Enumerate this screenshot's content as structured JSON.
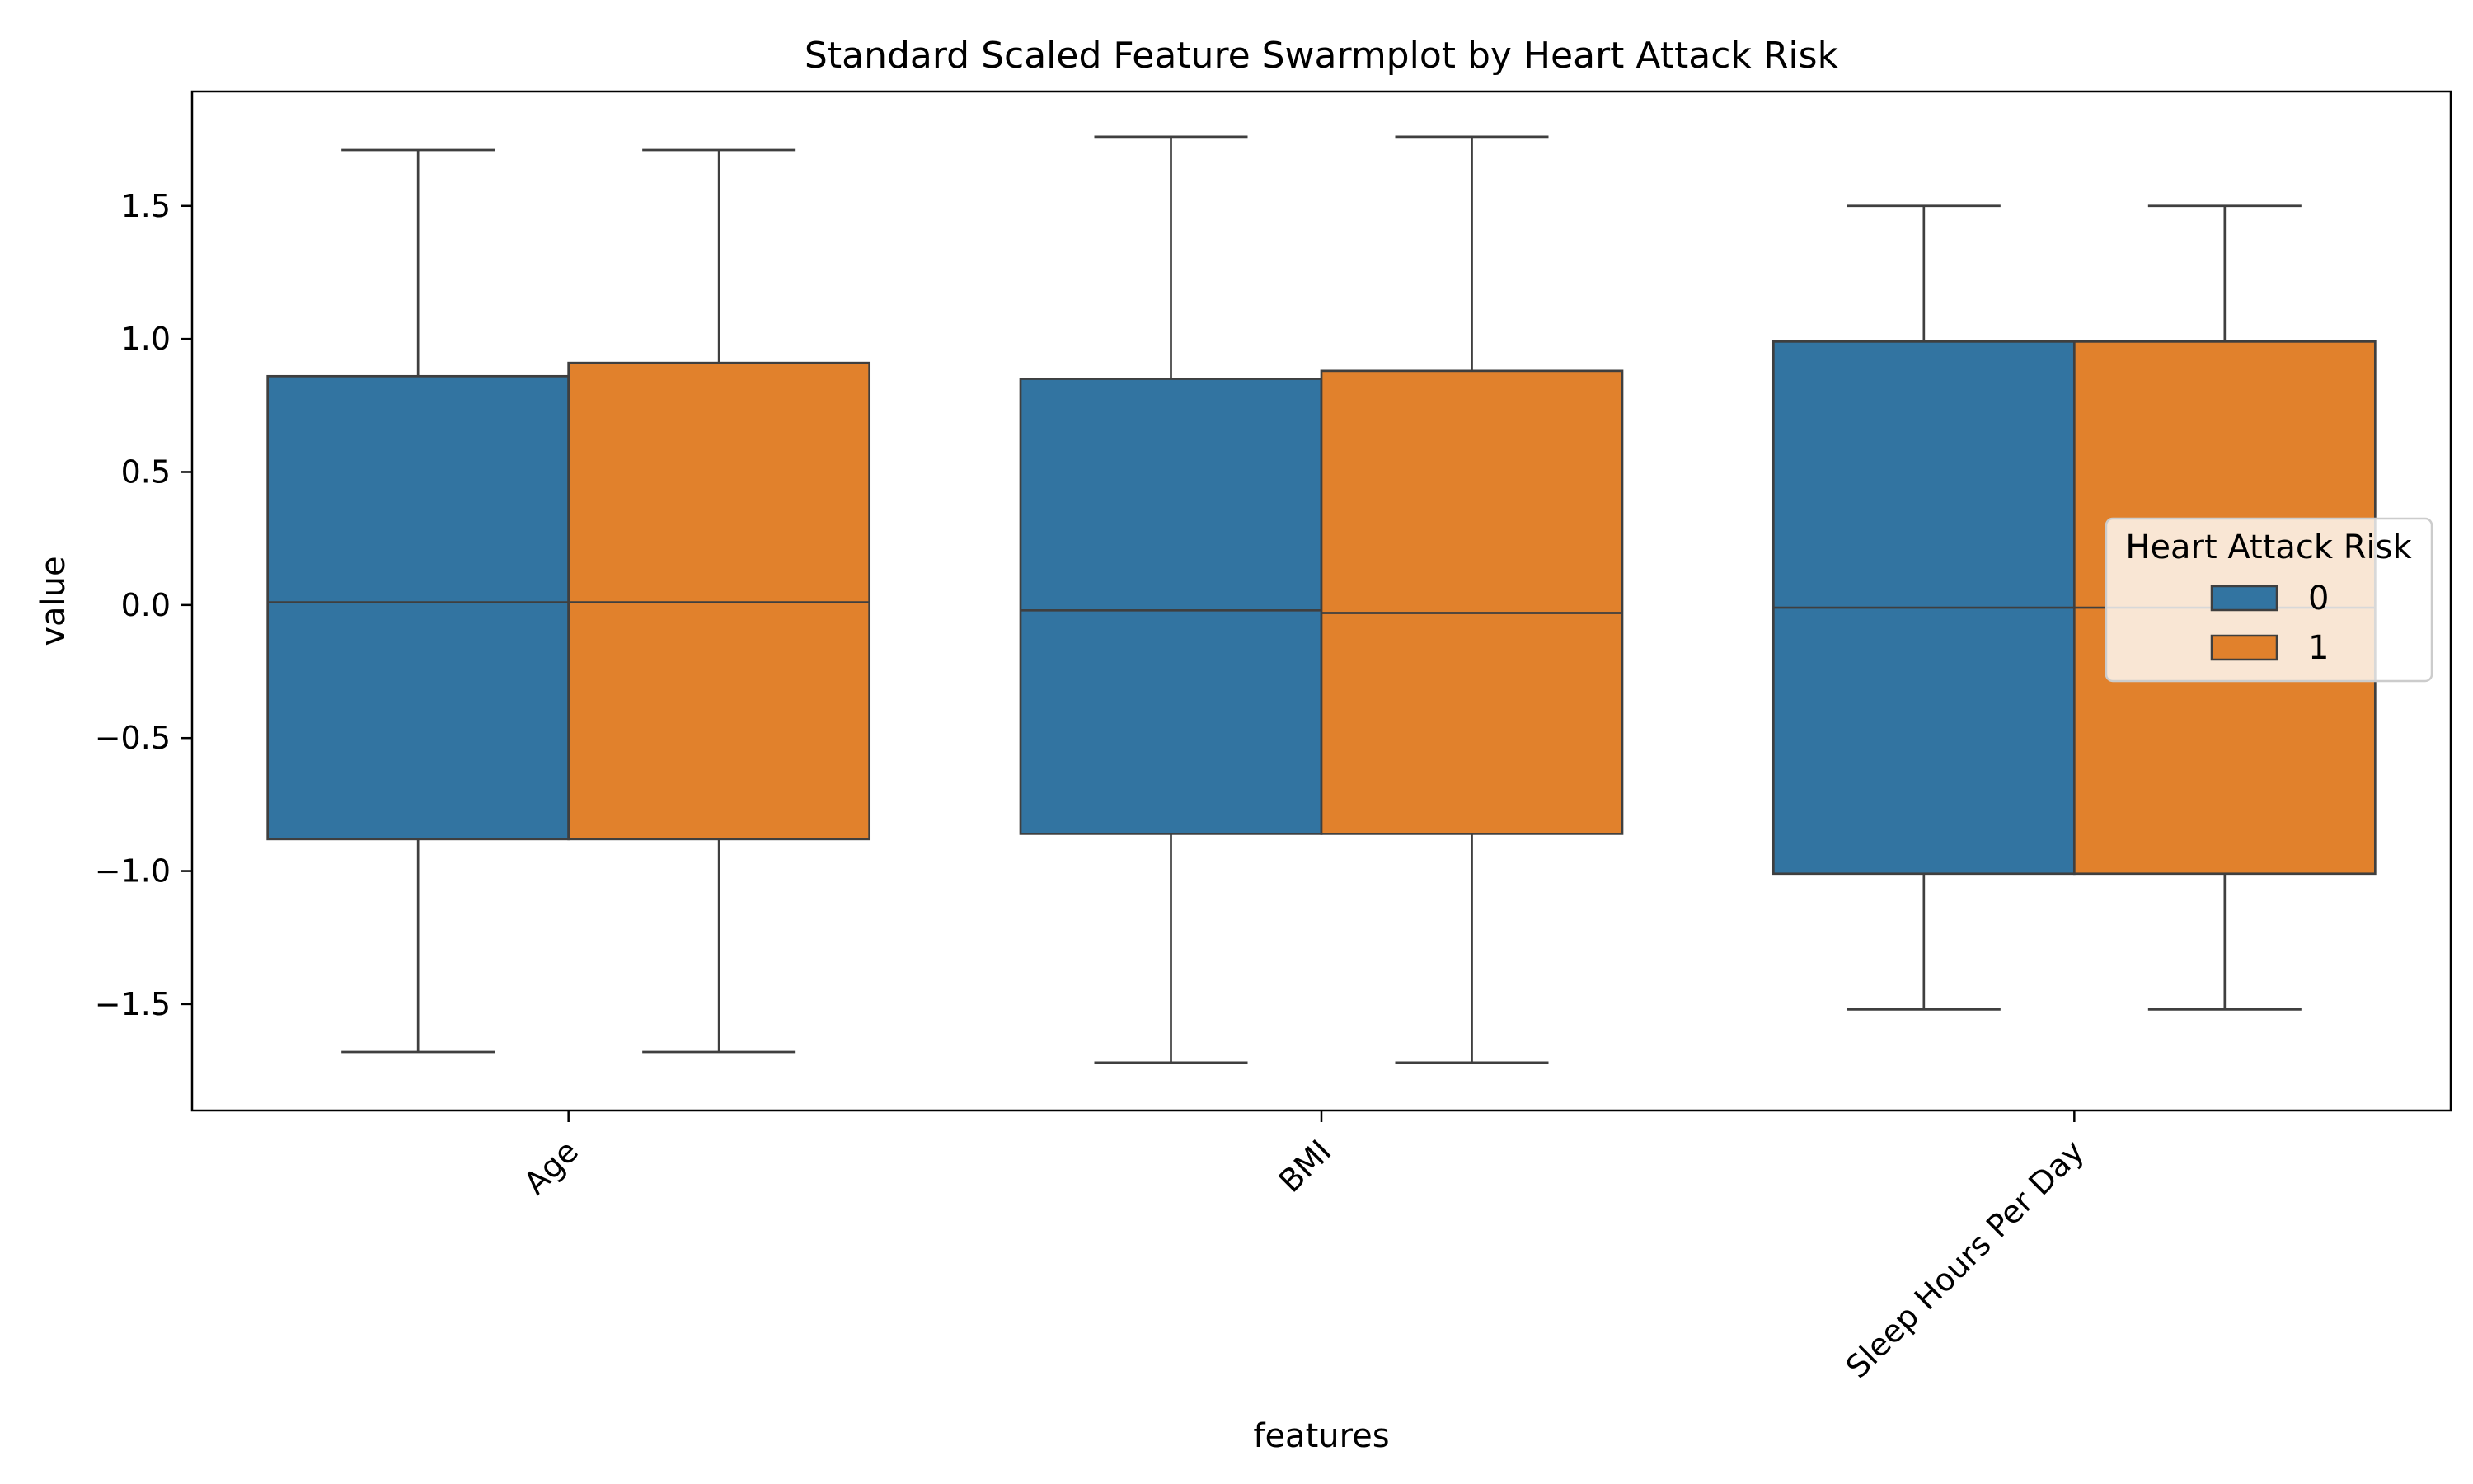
{
  "chart_data": {
    "type": "box",
    "title": "Standard Scaled Feature Swarmplot by Heart Attack Risk",
    "xlabel": "features",
    "ylabel": "value",
    "ylim": [
      -1.9,
      1.93
    ],
    "yticks": [
      -1.5,
      -1.0,
      -0.5,
      0.0,
      0.5,
      1.0,
      1.5
    ],
    "ytick_labels": [
      "−1.5",
      "−1.0",
      "−0.5",
      "0.0",
      "0.5",
      "1.0",
      "1.5"
    ],
    "categories": [
      "Age",
      "BMI",
      "Sleep Hours Per Day"
    ],
    "grid": false,
    "legend": {
      "title": "Heart Attack Risk",
      "placement": "center-right"
    },
    "series": [
      {
        "name": "0",
        "color": "#3274a1",
        "boxes": [
          {
            "whislo": -1.68,
            "q1": -0.88,
            "med": 0.01,
            "q3": 0.86,
            "whishi": 1.71
          },
          {
            "whislo": -1.72,
            "q1": -0.86,
            "med": -0.02,
            "q3": 0.85,
            "whishi": 1.76
          },
          {
            "whislo": -1.52,
            "q1": -1.01,
            "med": -0.01,
            "q3": 0.99,
            "whishi": 1.5
          }
        ]
      },
      {
        "name": "1",
        "color": "#e1812c",
        "boxes": [
          {
            "whislo": -1.68,
            "q1": -0.88,
            "med": 0.01,
            "q3": 0.91,
            "whishi": 1.71
          },
          {
            "whislo": -1.72,
            "q1": -0.86,
            "med": -0.03,
            "q3": 0.88,
            "whishi": 1.76
          },
          {
            "whislo": -1.52,
            "q1": -1.01,
            "med": -0.01,
            "q3": 0.99,
            "whishi": 1.5
          }
        ]
      }
    ]
  }
}
